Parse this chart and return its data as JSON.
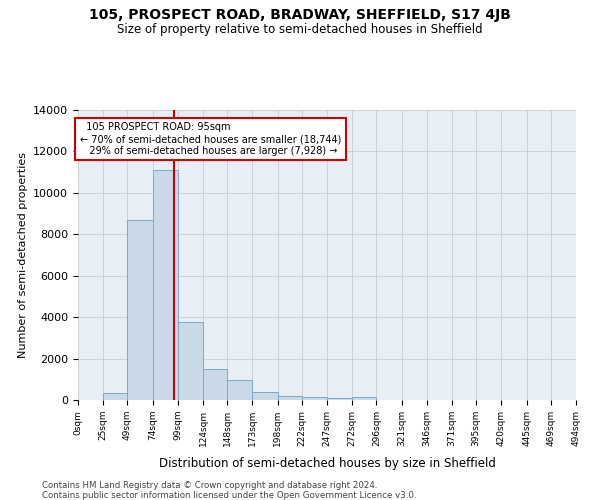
{
  "title": "105, PROSPECT ROAD, BRADWAY, SHEFFIELD, S17 4JB",
  "subtitle": "Size of property relative to semi-detached houses in Sheffield",
  "xlabel": "Distribution of semi-detached houses by size in Sheffield",
  "ylabel": "Number of semi-detached properties",
  "footer1": "Contains HM Land Registry data © Crown copyright and database right 2024.",
  "footer2": "Contains public sector information licensed under the Open Government Licence v3.0.",
  "property_label": "105 PROSPECT ROAD: 95sqm",
  "pct_smaller": 70,
  "pct_larger": 29,
  "n_smaller": 18744,
  "n_larger": 7928,
  "bin_edges": [
    0,
    25,
    49,
    74,
    99,
    124,
    148,
    173,
    198,
    222,
    247,
    272,
    296,
    321,
    346,
    371,
    395,
    420,
    445,
    469,
    494
  ],
  "bar_values": [
    0,
    350,
    8700,
    11100,
    3780,
    1520,
    960,
    380,
    200,
    150,
    110,
    130,
    0,
    0,
    0,
    0,
    0,
    0,
    0,
    0
  ],
  "bar_color": "#c9d9e8",
  "bar_edge_color": "#7aaac8",
  "vline_x": 95,
  "vline_color": "#cc0000",
  "annotation_box_color": "#cc0000",
  "ylim": [
    0,
    14000
  ],
  "yticks": [
    0,
    2000,
    4000,
    6000,
    8000,
    10000,
    12000,
    14000
  ],
  "grid_color": "#cccccc",
  "bg_color": "#e8eef5"
}
